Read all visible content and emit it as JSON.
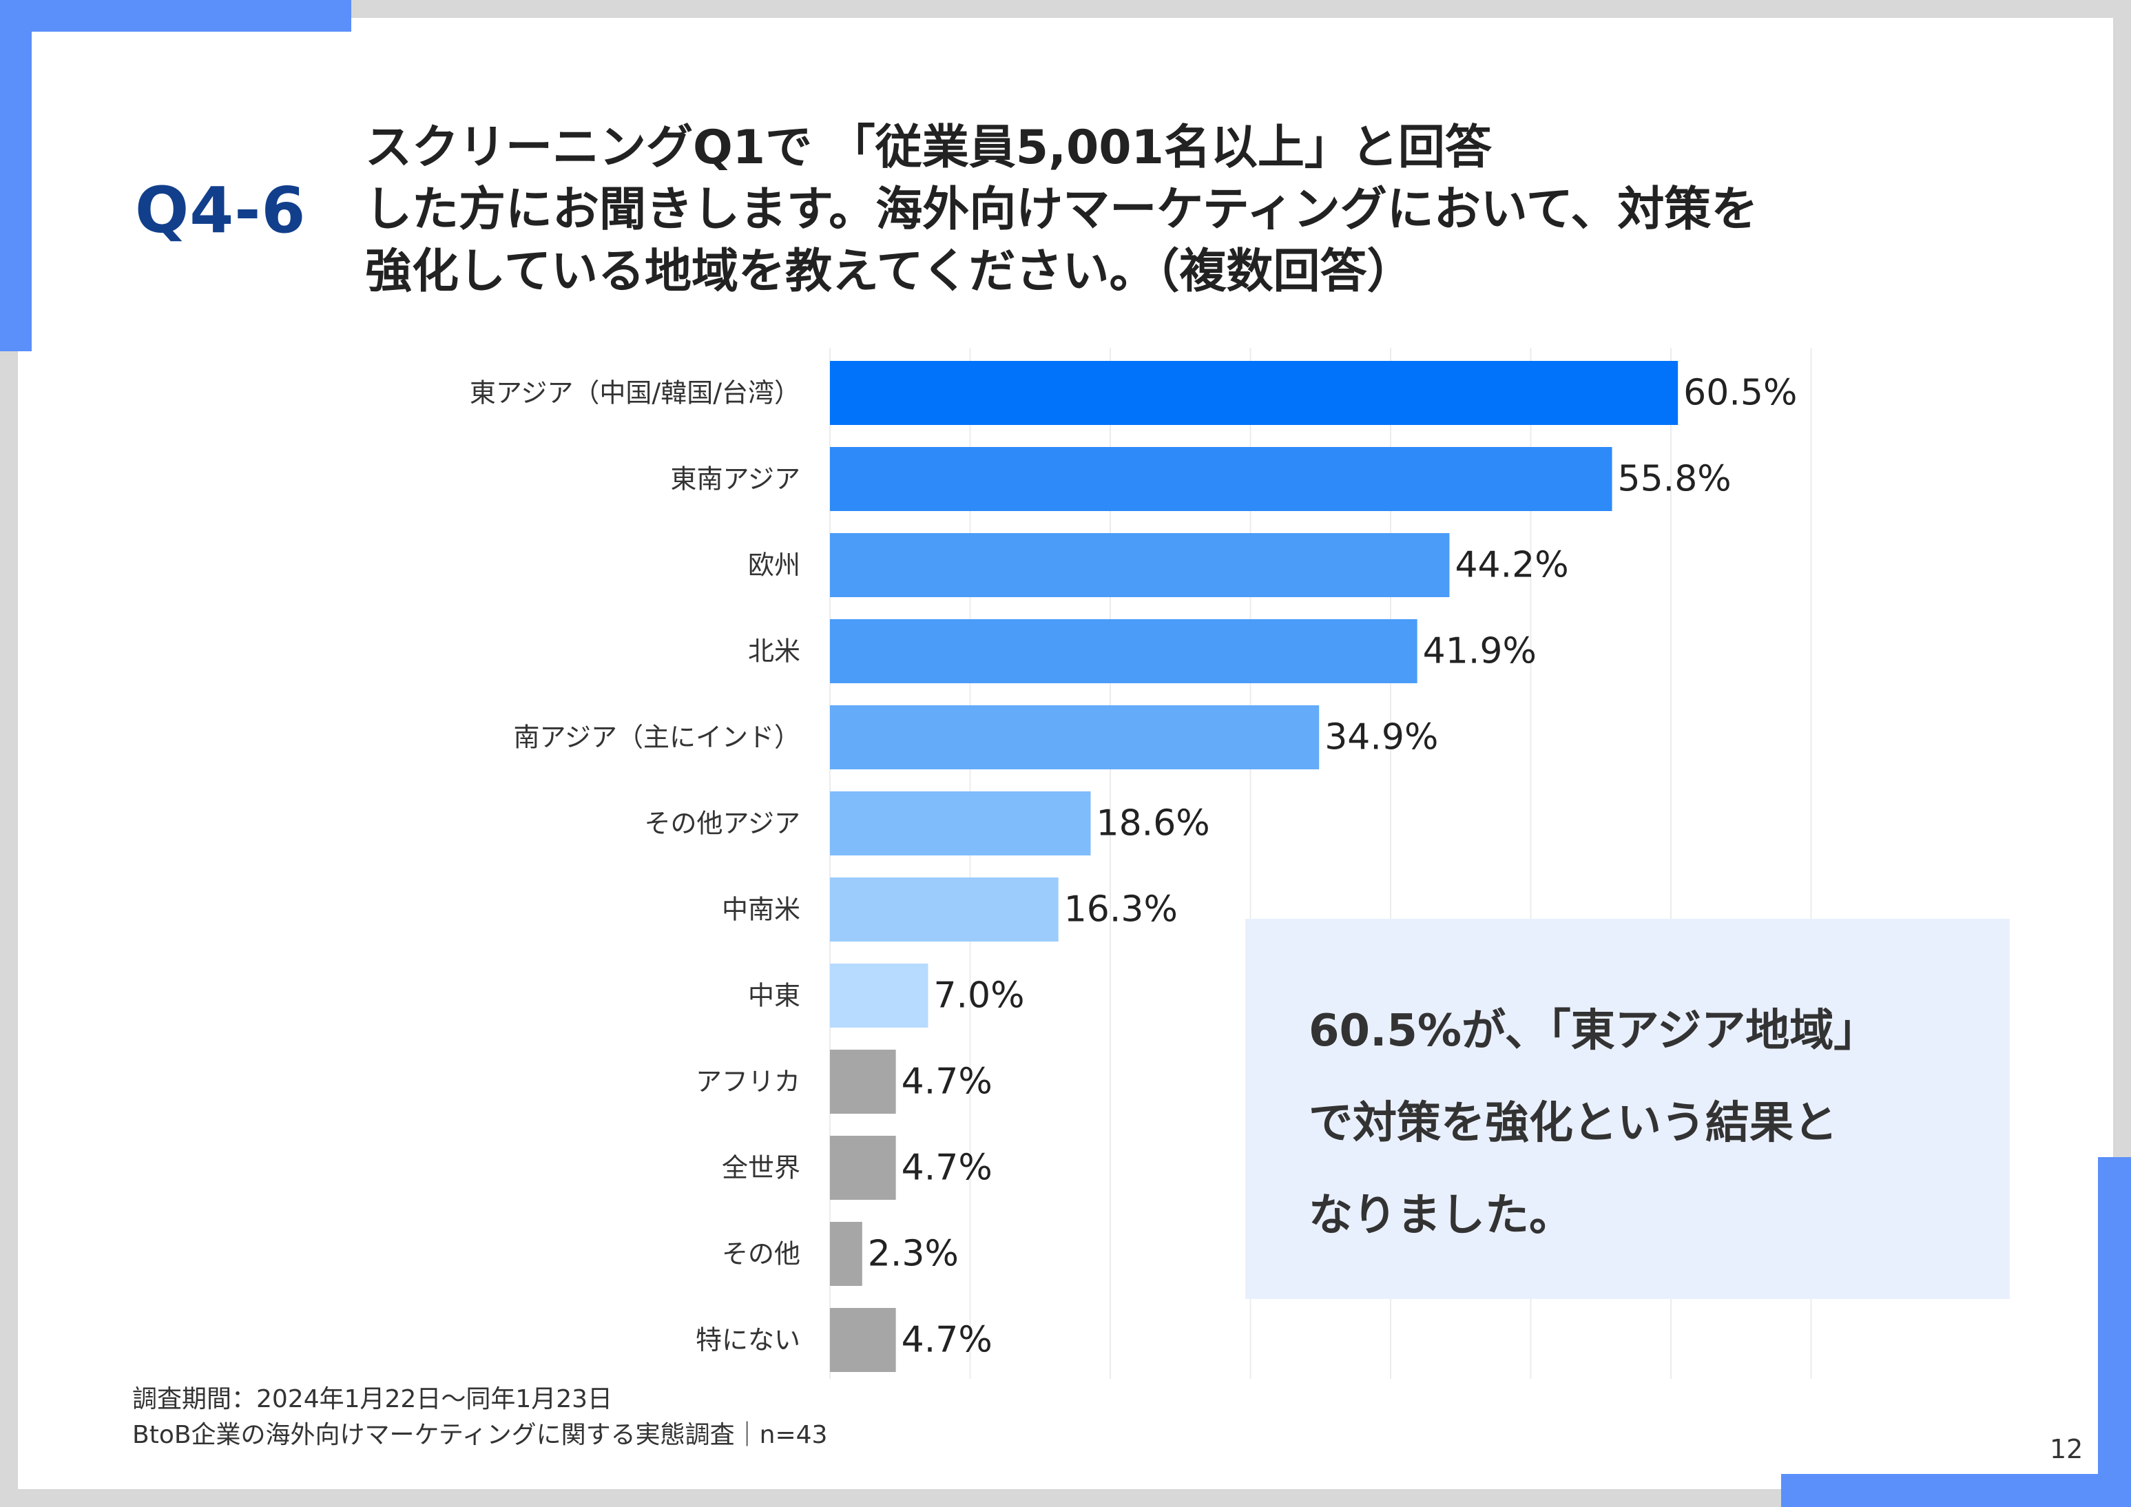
{
  "header": {
    "qnum": "Q4-6",
    "question_lines": [
      "スクリーニングQ1で 「従業員5,001名以上」と回答",
      "した方にお聞きします。海外向けマーケティングにおいて、対策を",
      "強化している地域を教えてください。（複数回答）"
    ]
  },
  "chart_data": {
    "type": "bar",
    "orientation": "horizontal",
    "categories": [
      "東アジア（中国/韓国/台湾）",
      "東南アジア",
      "欧州",
      "北米",
      "南アジア（主にインド）",
      "その他アジア",
      "中南米",
      "中東",
      "アフリカ",
      "全世界",
      "その他",
      "特にない"
    ],
    "values": [
      60.5,
      55.8,
      44.2,
      41.9,
      34.9,
      18.6,
      16.3,
      7.0,
      4.7,
      4.7,
      2.3,
      4.7
    ],
    "value_labels": [
      "60.5%",
      "55.8%",
      "44.2%",
      "41.9%",
      "34.9%",
      "18.6%",
      "16.3%",
      "7.0%",
      "4.7%",
      "4.7%",
      "2.3%",
      "4.7%"
    ],
    "colors": [
      "#0073fa",
      "#2d8af8",
      "#4b9cf8",
      "#4b9cf8",
      "#64abf9",
      "#7fbcfb",
      "#9cccfc",
      "#b7daff",
      "#a6a6a6",
      "#a6a6a6",
      "#a6a6a6",
      "#a6a6a6"
    ],
    "xlim": [
      0,
      70
    ],
    "grid": true,
    "grid_color": "#ececec"
  },
  "callout": {
    "lines": [
      "60.5%が、「東アジア地域」",
      "で対策を強化という結果と",
      "なりました。"
    ]
  },
  "footer": {
    "line1": "調査期間：2024年1月22日～同年1月23日",
    "line2": "BtoB企業の海外向けマーケティングに関する実態調査｜n=43"
  },
  "page_number": "12"
}
